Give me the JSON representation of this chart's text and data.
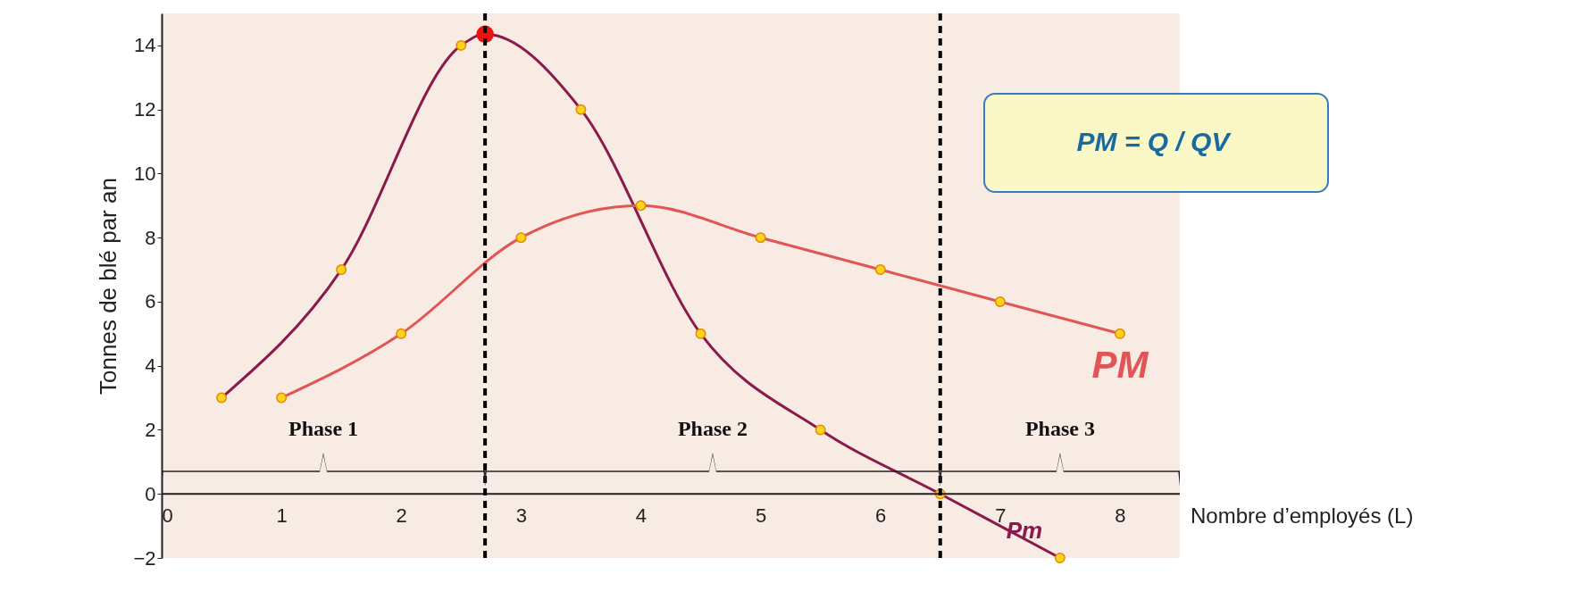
{
  "chart_data": {
    "type": "line",
    "xlabel": "Nombre d’employés (L)",
    "ylabel": "Tonnes de blé par an",
    "xlim": [
      0,
      8.5
    ],
    "ylim": [
      -2,
      15
    ],
    "xticks": [
      0,
      1,
      2,
      3,
      4,
      5,
      6,
      7,
      8
    ],
    "yticks": [
      -2,
      0,
      2,
      4,
      6,
      8,
      10,
      12,
      14
    ],
    "series": [
      {
        "name": "Pm",
        "color": "#8b1a4a",
        "x": [
          0.5,
          1.5,
          2.5,
          2.7,
          3.5,
          4.5,
          5.5,
          6.5,
          7.5
        ],
        "values": [
          3,
          7,
          14,
          14.35,
          12,
          5,
          2,
          0,
          -2
        ]
      },
      {
        "name": "PM",
        "color": "#e05555",
        "x": [
          1,
          2,
          3,
          4,
          5,
          6,
          7,
          8
        ],
        "values": [
          3,
          5,
          8,
          9,
          8,
          7,
          6,
          5
        ]
      },
      {
        "type": "scatter",
        "color": "#ee1111",
        "x": [
          2.7
        ],
        "values": [
          14.35
        ]
      }
    ],
    "ref_lines": [
      {
        "axis": "x",
        "value": 2.7,
        "color": "#000000",
        "line_style": "dashed"
      },
      {
        "axis": "x",
        "value": 6.5,
        "color": "#000000",
        "line_style": "dashed"
      }
    ],
    "annotations": [
      "PM = Q / QV",
      "Phase 1",
      "Phase 2",
      "Phase 3"
    ],
    "marker": "circle",
    "grid": false
  }
}
